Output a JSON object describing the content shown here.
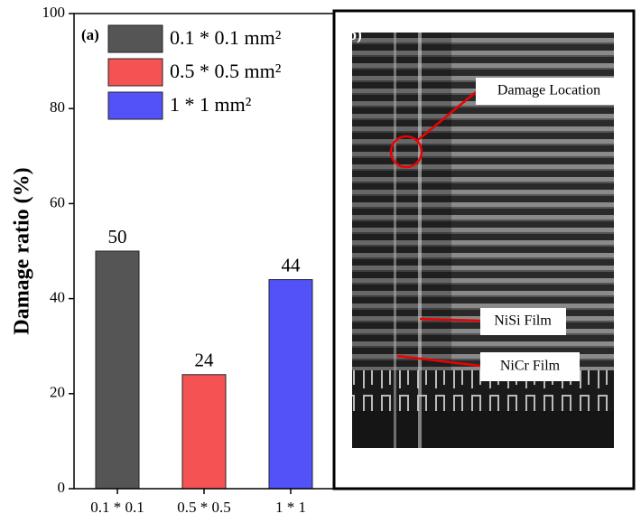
{
  "chart_data": {
    "type": "bar",
    "panel_label": "(a)",
    "ylabel": "Damage ratio (%)",
    "categories": [
      "0.1 * 0.1",
      "0.5 * 0.5",
      "1 * 1"
    ],
    "series": [
      {
        "name": "0.1 * 0.1 mm²",
        "color": "#555555",
        "values": [
          50,
          null,
          null
        ]
      },
      {
        "name": "0.5 * 0.5 mm²",
        "color": "#f55353",
        "values": [
          null,
          24,
          null
        ]
      },
      {
        "name": "1 * 1 mm²",
        "color": "#5352f8",
        "values": [
          null,
          null,
          44
        ]
      }
    ],
    "ylim": [
      0,
      100
    ],
    "yticks": [
      0,
      20,
      40,
      60,
      80,
      100
    ]
  },
  "image_panel": {
    "panel_label": "(b)",
    "annotations": [
      "Damage Location",
      "NiSi Film",
      "NiCr Film"
    ]
  }
}
